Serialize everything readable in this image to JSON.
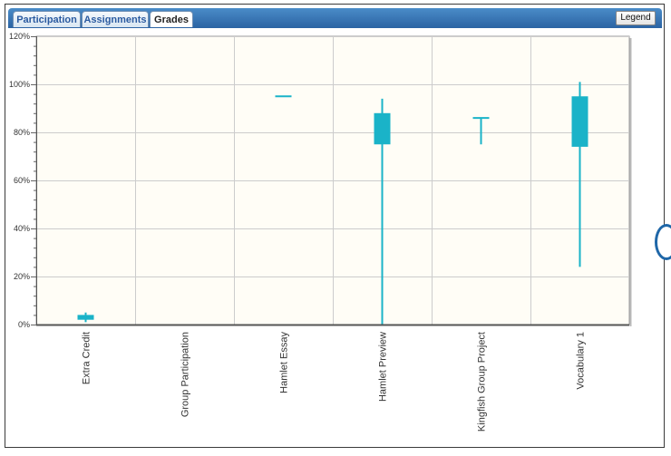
{
  "tabs": [
    {
      "label": "Participation",
      "active": false
    },
    {
      "label": "Assignments",
      "active": false
    },
    {
      "label": "Grades",
      "active": true
    }
  ],
  "legend_button": "Legend",
  "colors": {
    "accent": "#1ab3c8",
    "plot_bg": "#fffdf6",
    "grid": "#cccccc",
    "tab_bar": "#2b63a3"
  },
  "chart_data": {
    "type": "box",
    "yunit": "%",
    "ylim": [
      0,
      120
    ],
    "yticks": [
      0,
      20,
      40,
      60,
      80,
      100,
      120
    ],
    "ytick_labels": [
      "0%",
      "20%",
      "40%",
      "60%",
      "80%",
      "100%",
      "120%"
    ],
    "grid": true,
    "categories": [
      "Extra Credit",
      "Group Participation",
      "Hamlet Essay",
      "Hamlet Preview",
      "Kingfish Group Project",
      "Vocabulary 1"
    ],
    "boxes": [
      {
        "min": 1,
        "q1": 2,
        "q3": 4,
        "max": 5
      },
      null,
      {
        "min": 95,
        "q1": 95,
        "q3": 95,
        "max": 95
      },
      {
        "min": 0,
        "q1": 75,
        "q3": 88,
        "max": 94
      },
      {
        "min": 75,
        "q1": 86,
        "q3": 86,
        "max": 86
      },
      {
        "min": 24,
        "q1": 74,
        "q3": 95,
        "max": 101
      }
    ]
  }
}
